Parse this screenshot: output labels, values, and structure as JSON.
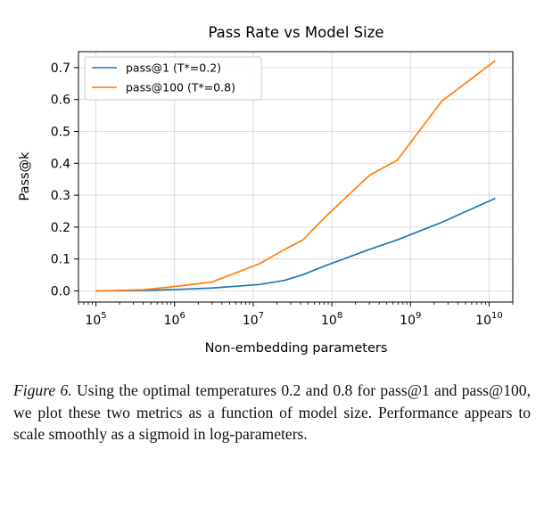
{
  "chart_data": {
    "type": "line",
    "title": "Pass Rate vs Model Size",
    "xlabel": "Non-embedding parameters",
    "ylabel": "Pass@k",
    "x_scale": "log",
    "xlim": [
      60000,
      20000000000
    ],
    "ylim": [
      -0.035,
      0.75
    ],
    "x_ticks": [
      {
        "value": 100000,
        "base": "10",
        "exp": "5"
      },
      {
        "value": 1000000,
        "base": "10",
        "exp": "6"
      },
      {
        "value": 10000000,
        "base": "10",
        "exp": "7"
      },
      {
        "value": 100000000,
        "base": "10",
        "exp": "8"
      },
      {
        "value": 1000000000,
        "base": "10",
        "exp": "9"
      },
      {
        "value": 10000000000,
        "base": "10",
        "exp": "10"
      }
    ],
    "y_ticks": [
      {
        "value": 0.0,
        "label": "0.0"
      },
      {
        "value": 0.1,
        "label": "0.1"
      },
      {
        "value": 0.2,
        "label": "0.2"
      },
      {
        "value": 0.3,
        "label": "0.3"
      },
      {
        "value": 0.4,
        "label": "0.4"
      },
      {
        "value": 0.5,
        "label": "0.5"
      },
      {
        "value": 0.6,
        "label": "0.6"
      },
      {
        "value": 0.7,
        "label": "0.7"
      }
    ],
    "grid": true,
    "legend_position": "top-left",
    "series": [
      {
        "name": "pass@1 (T*=0.2)",
        "color": "#1f77b4",
        "points": [
          [
            100000,
            0.0
          ],
          [
            400000,
            0.001
          ],
          [
            1200000,
            0.005
          ],
          [
            3000000,
            0.009
          ],
          [
            12000000,
            0.02
          ],
          [
            25000000,
            0.033
          ],
          [
            42000000,
            0.05
          ],
          [
            85000000,
            0.08
          ],
          [
            300000000,
            0.13
          ],
          [
            680000000,
            0.16
          ],
          [
            2500000000,
            0.215
          ],
          [
            12000000000,
            0.29
          ]
        ]
      },
      {
        "name": "pass@100 (T*=0.8)",
        "color": "#ff7f0e",
        "points": [
          [
            100000,
            0.0
          ],
          [
            400000,
            0.003
          ],
          [
            1200000,
            0.016
          ],
          [
            3000000,
            0.028
          ],
          [
            12000000,
            0.085
          ],
          [
            25000000,
            0.13
          ],
          [
            42000000,
            0.158
          ],
          [
            85000000,
            0.235
          ],
          [
            300000000,
            0.362
          ],
          [
            680000000,
            0.41
          ],
          [
            2500000000,
            0.595
          ],
          [
            12000000000,
            0.722
          ]
        ]
      }
    ]
  },
  "caption": {
    "label": "Figure 6.",
    "text": "Using the optimal temperatures 0.2 and 0.8 for pass@1 and pass@100, we plot these two metrics as a function of model size. Performance appears to scale smoothly as a sigmoid in log-parameters."
  }
}
